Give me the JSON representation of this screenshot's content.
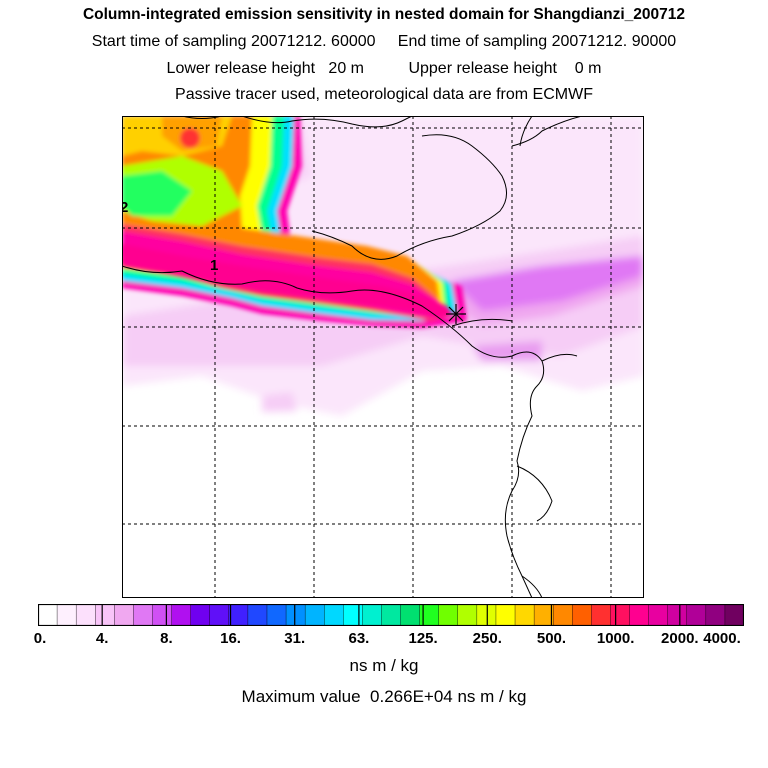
{
  "header": {
    "title": "Column-integrated emission sensitivity in nested domain for Shangdianzi_200712",
    "sampling_line": "Start time of sampling 20071212. 60000     End time of sampling 20071212. 90000",
    "release_line": "Lower release height   20 m          Upper release height    0 m",
    "tracer_line": "Passive tracer used, meteorological data are from ECMWF"
  },
  "map": {
    "contour_labels": [
      "2",
      "1"
    ],
    "receptor_marker": "star-icon"
  },
  "colorbar": {
    "colors": [
      "#ffffff",
      "#fef0fe",
      "#fce0fc",
      "#f8c4f8",
      "#f0a8f0",
      "#e078f4",
      "#d050f4",
      "#b010f0",
      "#7000f0",
      "#6010f8",
      "#4020ff",
      "#2048ff",
      "#1068ff",
      "#0090ff",
      "#00b4ff",
      "#00d8ff",
      "#00ffff",
      "#00f0d0",
      "#00e8a0",
      "#00e070",
      "#20ff20",
      "#70ff00",
      "#b0ff00",
      "#e0ff00",
      "#ffff00",
      "#ffd800",
      "#ffb000",
      "#ff8800",
      "#ff6000",
      "#ff3030",
      "#ff1060",
      "#ff0090",
      "#e800a0",
      "#d000a0",
      "#b00098",
      "#900080",
      "#700060"
    ],
    "tick_labels": [
      "0.",
      "4.",
      "8.",
      "16.",
      "31.",
      "63.",
      "125.",
      "250.",
      "500.",
      "1000.",
      "2000.",
      "4000."
    ],
    "units": "ns m / kg"
  },
  "footer": {
    "max_value": "Maximum value  0.266E+04 ns m / kg"
  }
}
